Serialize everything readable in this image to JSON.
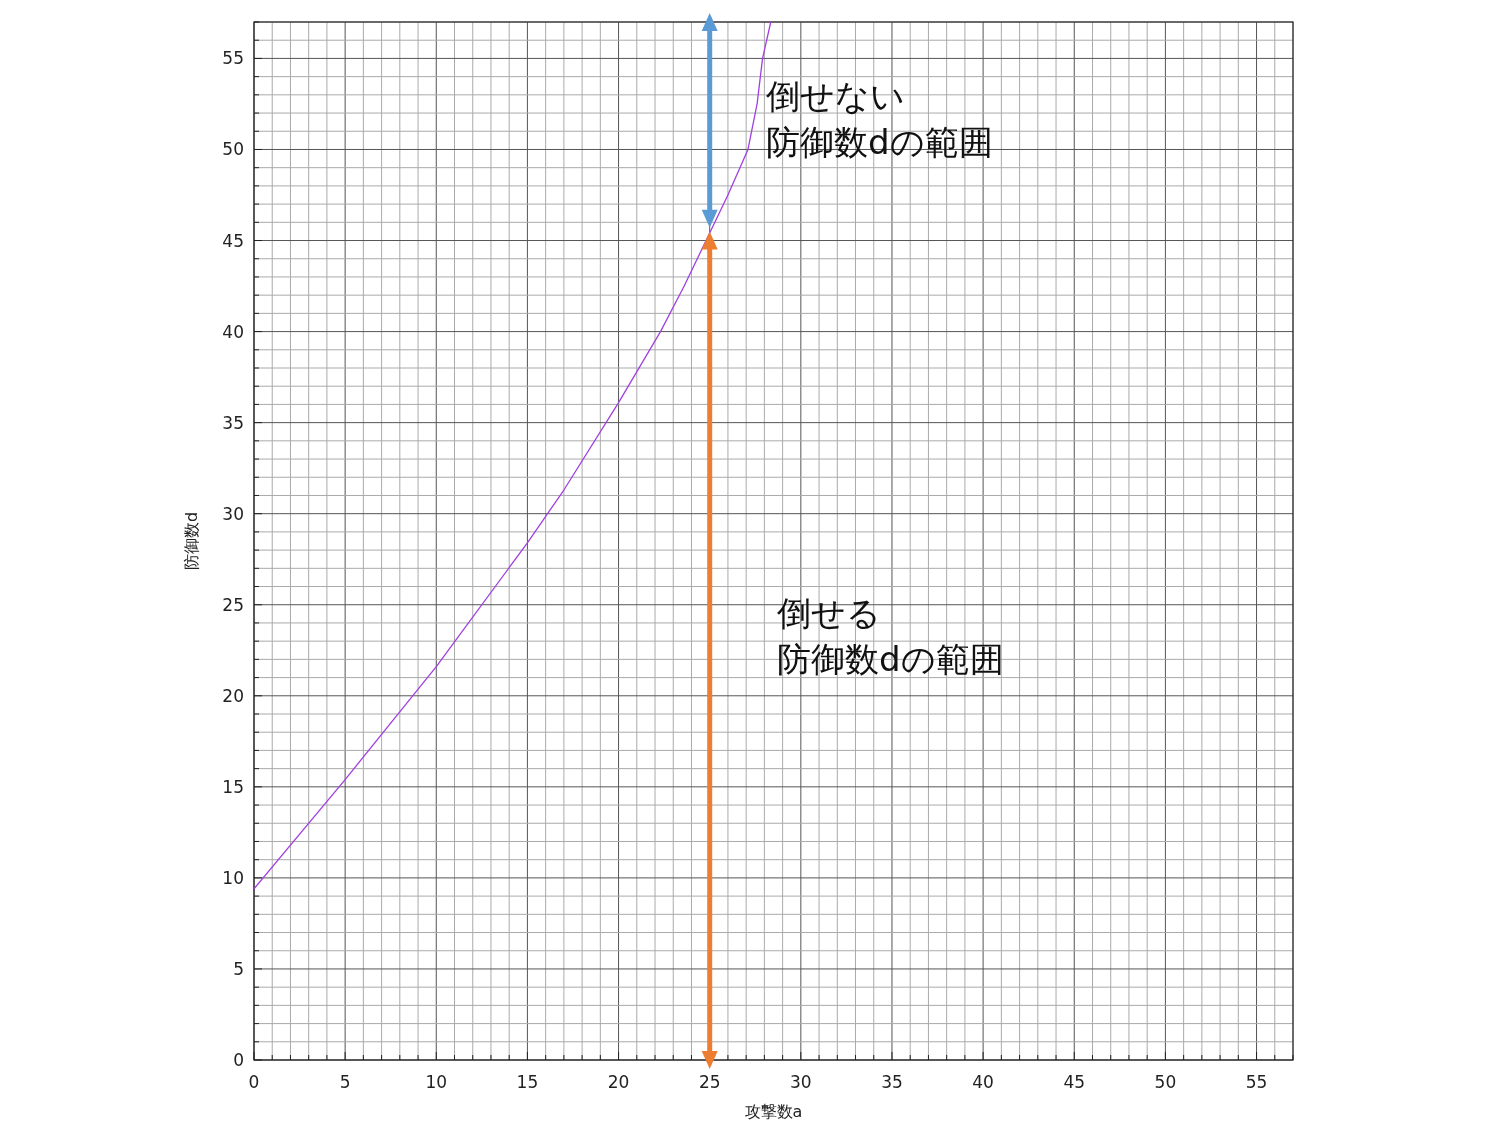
{
  "chart_data": {
    "type": "line",
    "xlabel": "攻撃数a",
    "ylabel": "防御数d",
    "xlim": [
      0,
      57
    ],
    "ylim": [
      0,
      57
    ],
    "xticks": [
      0,
      {
        "value": 1,
        "label": null
      },
      {
        "value": 2,
        "label": null
      },
      {
        "value": 3,
        "label": null
      },
      {
        "value": 4,
        "label": null
      },
      5,
      {
        "value": 6,
        "label": null
      },
      {
        "value": 7,
        "label": null
      },
      {
        "value": 8,
        "label": null
      },
      {
        "value": 9,
        "label": null
      },
      10,
      {
        "value": 11,
        "label": null
      },
      {
        "value": 12,
        "label": null
      },
      {
        "value": 13,
        "label": null
      },
      {
        "value": 14,
        "label": null
      },
      15,
      {
        "value": 16,
        "label": null
      },
      {
        "value": 17,
        "label": null
      },
      {
        "value": 18,
        "label": null
      },
      {
        "value": 19,
        "label": null
      },
      20,
      {
        "value": 21,
        "label": null
      },
      {
        "value": 22,
        "label": null
      },
      {
        "value": 23,
        "label": null
      },
      {
        "value": 24,
        "label": null
      },
      25,
      {
        "value": 26,
        "label": null
      },
      {
        "value": 27,
        "label": null
      },
      {
        "value": 28,
        "label": null
      },
      {
        "value": 29,
        "label": null
      },
      30,
      {
        "value": 31,
        "label": null
      },
      {
        "value": 32,
        "label": null
      },
      {
        "value": 33,
        "label": null
      },
      {
        "value": 34,
        "label": null
      },
      35,
      {
        "value": 36,
        "label": null
      },
      {
        "value": 37,
        "label": null
      },
      {
        "value": 38,
        "label": null
      },
      {
        "value": 39,
        "label": null
      },
      40,
      {
        "value": 41,
        "label": null
      },
      {
        "value": 42,
        "label": null
      },
      {
        "value": 43,
        "label": null
      },
      {
        "value": 44,
        "label": null
      },
      45,
      {
        "value": 46,
        "label": null
      },
      {
        "value": 47,
        "label": null
      },
      {
        "value": 48,
        "label": null
      },
      {
        "value": 49,
        "label": null
      },
      50,
      {
        "value": 51,
        "label": null
      },
      {
        "value": 52,
        "label": null
      },
      {
        "value": 53,
        "label": null
      },
      {
        "value": 54,
        "label": null
      },
      55,
      {
        "value": 56,
        "label": null
      },
      {
        "value": 57,
        "label": null
      }
    ],
    "yticks": [
      0,
      {
        "value": 1,
        "label": null
      },
      {
        "value": 2,
        "label": null
      },
      {
        "value": 3,
        "label": null
      },
      {
        "value": 4,
        "label": null
      },
      5,
      {
        "value": 6,
        "label": null
      },
      {
        "value": 7,
        "label": null
      },
      {
        "value": 8,
        "label": null
      },
      {
        "value": 9,
        "label": null
      },
      10,
      {
        "value": 11,
        "label": null
      },
      {
        "value": 12,
        "label": null
      },
      {
        "value": 13,
        "label": null
      },
      {
        "value": 14,
        "label": null
      },
      15,
      {
        "value": 16,
        "label": null
      },
      {
        "value": 17,
        "label": null
      },
      {
        "value": 18,
        "label": null
      },
      {
        "value": 19,
        "label": null
      },
      20,
      {
        "value": 21,
        "label": null
      },
      {
        "value": 22,
        "label": null
      },
      {
        "value": 23,
        "label": null
      },
      {
        "value": 24,
        "label": null
      },
      25,
      {
        "value": 26,
        "label": null
      },
      {
        "value": 27,
        "label": null
      },
      {
        "value": 28,
        "label": null
      },
      {
        "value": 29,
        "label": null
      },
      30,
      {
        "value": 31,
        "label": null
      },
      {
        "value": 32,
        "label": null
      },
      {
        "value": 33,
        "label": null
      },
      {
        "value": 34,
        "label": null
      },
      35,
      {
        "value": 36,
        "label": null
      },
      {
        "value": 37,
        "label": null
      },
      {
        "value": 38,
        "label": null
      },
      {
        "value": 39,
        "label": null
      },
      40,
      {
        "value": 41,
        "label": null
      },
      {
        "value": 42,
        "label": null
      },
      {
        "value": 43,
        "label": null
      },
      {
        "value": 44,
        "label": null
      },
      45,
      {
        "value": 46,
        "label": null
      },
      {
        "value": 47,
        "label": null
      },
      {
        "value": 48,
        "label": null
      },
      {
        "value": 49,
        "label": null
      },
      50,
      {
        "value": 51,
        "label": null
      },
      {
        "value": 52,
        "label": null
      },
      {
        "value": 53,
        "label": null
      },
      {
        "value": 54,
        "label": null
      },
      55,
      {
        "value": 56,
        "label": null
      },
      {
        "value": 57,
        "label": null
      }
    ],
    "grid": true,
    "series": [
      {
        "color": "#a040e0",
        "marker": "none",
        "x": [
          0,
          5,
          10,
          15,
          17,
          20,
          22.3,
          23.6,
          26,
          27.1,
          27.6,
          27.9,
          28.35
        ],
        "values": [
          9.4,
          15.4,
          21.6,
          28.4,
          31.3,
          36.1,
          40,
          42.5,
          47.5,
          50,
          52.5,
          55,
          57
        ]
      },
      {
        "color": "#ed7d31",
        "marker": "triangle",
        "x": [
          25,
          25
        ],
        "values": [
          0,
          45
        ]
      },
      {
        "color": "#5b9bd5",
        "marker": "triangle",
        "x": [
          25,
          25
        ],
        "values": [
          46.2,
          57
        ]
      }
    ],
    "annotations": [
      "倒せない防御数dの範囲",
      "倒せる防御数dの範囲"
    ]
  }
}
